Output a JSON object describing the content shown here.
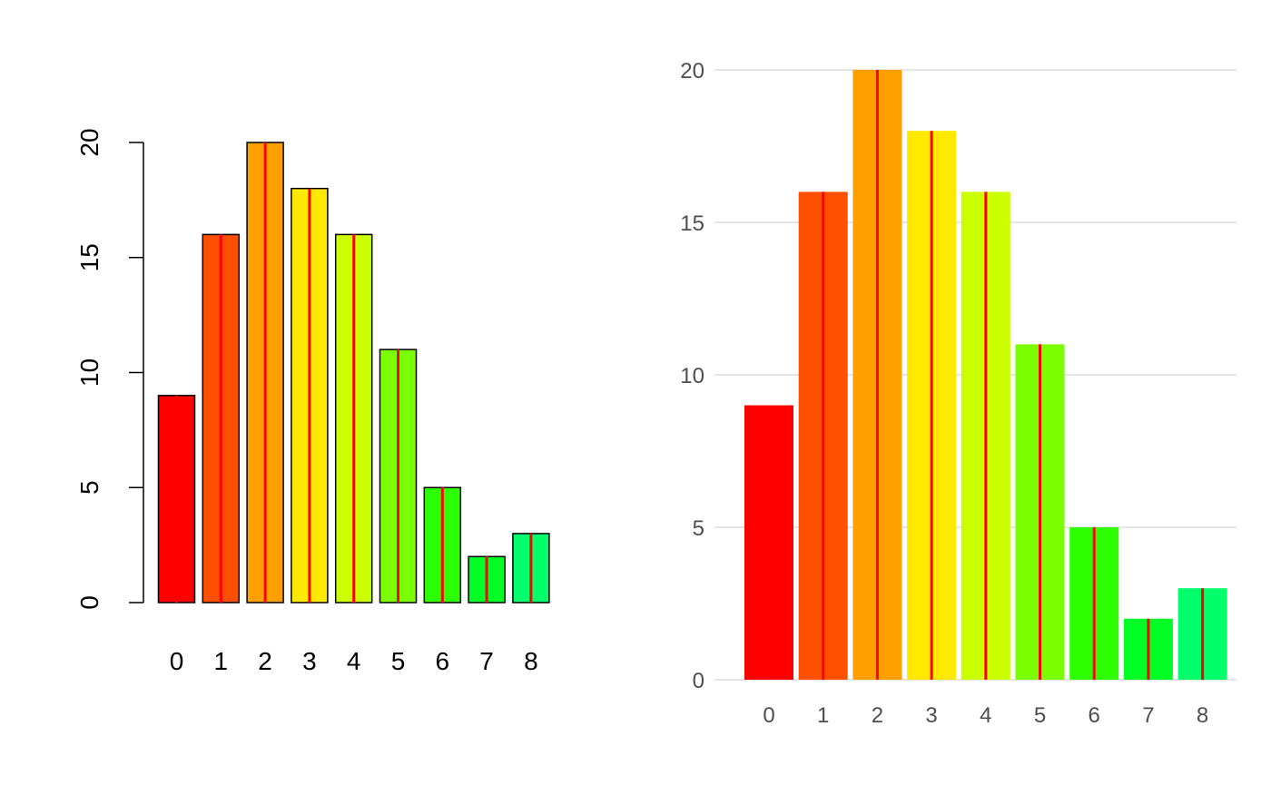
{
  "chart_data": [
    {
      "type": "bar",
      "style": "base-r",
      "categories": [
        "0",
        "1",
        "2",
        "3",
        "4",
        "5",
        "6",
        "7",
        "8"
      ],
      "values": [
        9,
        16,
        20,
        18,
        16,
        11,
        5,
        2,
        3
      ],
      "bar_colors": [
        "#FF0000",
        "#FF4F00",
        "#FF9F00",
        "#FFE900",
        "#CBFF00",
        "#7BFF00",
        "#2DFF00",
        "#00FF24",
        "#00FF6A"
      ],
      "overlay_line_color": "#FF0000",
      "y_ticks": [
        "0",
        "5",
        "10",
        "15",
        "20"
      ],
      "ylim": [
        0,
        20
      ],
      "grid": false,
      "title": "",
      "xlabel": "",
      "ylabel": ""
    },
    {
      "type": "bar",
      "style": "ggplot-minimal",
      "categories": [
        "0",
        "1",
        "2",
        "3",
        "4",
        "5",
        "6",
        "7",
        "8"
      ],
      "values": [
        9,
        16,
        20,
        18,
        16,
        11,
        5,
        2,
        3
      ],
      "bar_colors": [
        "#FF0000",
        "#FF4F00",
        "#FF9F00",
        "#FFE900",
        "#CBFF00",
        "#7BFF00",
        "#2DFF00",
        "#00FF24",
        "#00FF6A"
      ],
      "overlay_line_color": "#FF0000",
      "y_ticks": [
        "0",
        "5",
        "10",
        "15",
        "20"
      ],
      "ylim": [
        0,
        20
      ],
      "grid": true,
      "title": "",
      "xlabel": "",
      "ylabel": ""
    }
  ]
}
